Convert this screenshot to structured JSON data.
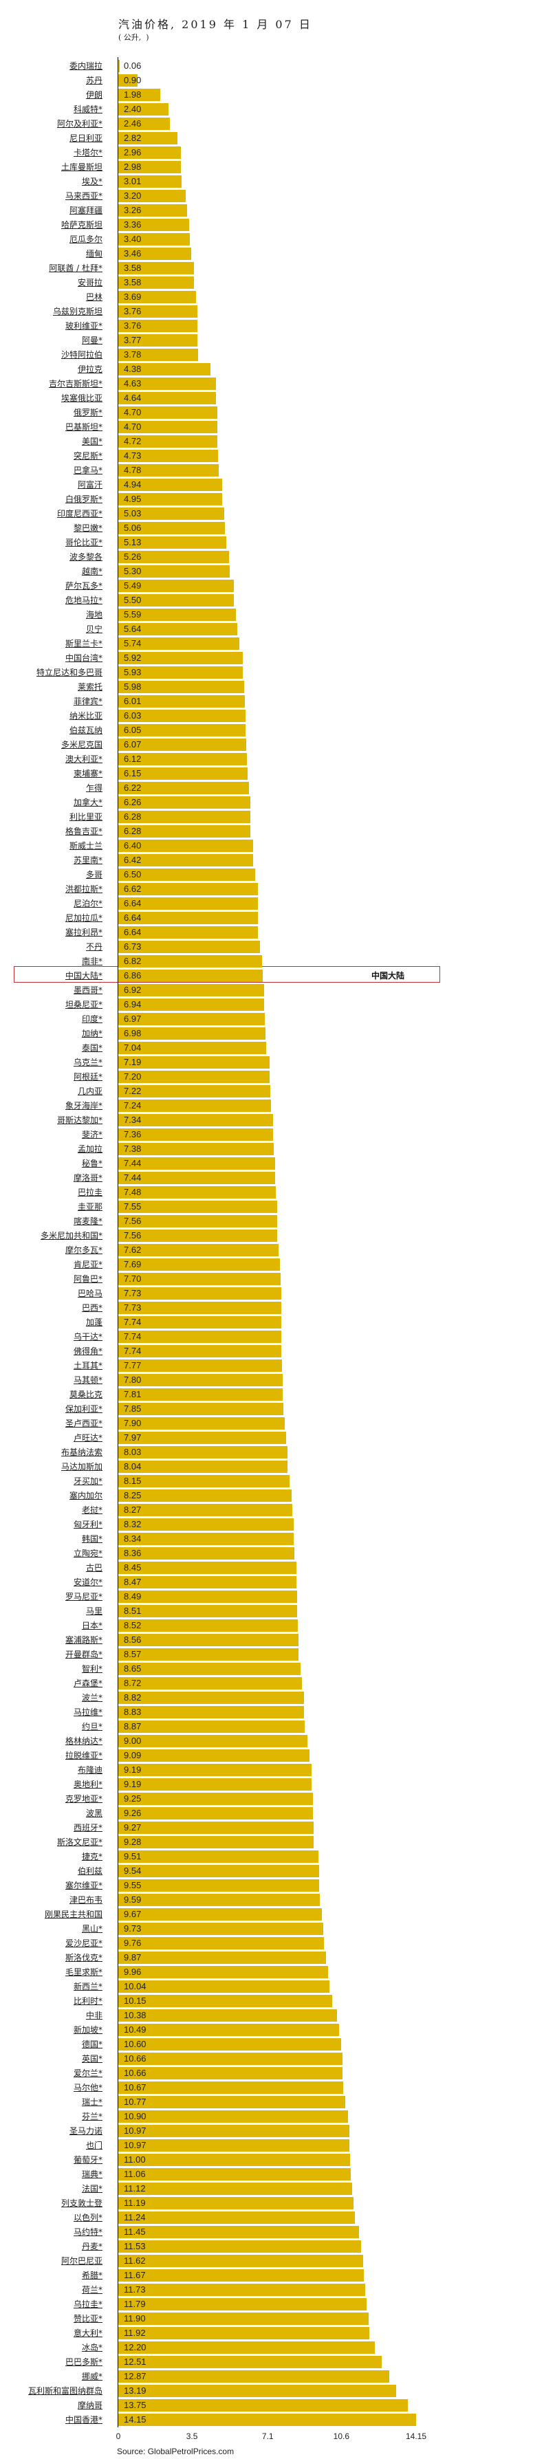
{
  "chart_data": {
    "type": "bar",
    "orientation": "horizontal",
    "title": "汽油价格, 2019 年 1 月 07 日",
    "subtitle": "( 公升,  )",
    "source": "Source: GlobalPetrolPrices.com",
    "highlight_label": "中国大陆",
    "highlight_category": "中国大陆*",
    "bar_color": "#E0B700",
    "xlim": [
      0,
      14.15
    ],
    "xticks": [
      "0",
      "3.5",
      "7.1",
      "10.6",
      "14.15"
    ],
    "xtick_values": [
      0,
      3.5,
      7.1,
      10.6,
      14.15
    ],
    "categories": [
      "委内瑞拉",
      "苏丹",
      "伊朗",
      "科威特*",
      "阿尔及利亚*",
      "尼日利亚",
      "卡塔尔*",
      "土库曼斯坦",
      "埃及*",
      "马来西亚*",
      "阿塞拜疆",
      "哈萨克斯坦",
      "厄瓜多尔",
      "缅甸",
      "阿联酋 / 杜拜*",
      "安哥拉",
      "巴林",
      "乌兹别克斯坦",
      "玻利维亚*",
      "阿曼*",
      "沙特阿拉伯",
      "伊拉克",
      "吉尔吉斯斯坦*",
      "埃塞俄比亚",
      "俄罗斯*",
      "巴基斯坦*",
      "美国*",
      "突尼斯*",
      "巴拿马*",
      "阿富汗",
      "白俄罗斯*",
      "印度尼西亚*",
      "黎巴嫩*",
      "哥伦比亚*",
      "波多黎各",
      "越南*",
      "萨尔瓦多*",
      "危地马拉*",
      "海地",
      "贝宁",
      "斯里兰卡*",
      "中国台湾*",
      "特立尼达和多巴哥",
      "莱索托",
      "菲律宾*",
      "纳米比亚",
      "伯兹瓦纳",
      "多米尼克国",
      "澳大利亚*",
      "柬埔寨*",
      "乍得",
      "加拿大*",
      "利比里亚",
      "格鲁吉亚*",
      "斯威士兰",
      "苏里南*",
      "多哥",
      "洪都拉斯*",
      "尼泊尔*",
      "尼加拉瓜*",
      "塞拉利昂*",
      "不丹",
      "南非*",
      "中国大陆*",
      "墨西哥*",
      "坦桑尼亚*",
      "印度*",
      "加纳*",
      "泰国*",
      "乌克兰*",
      "阿根廷*",
      "几内亚",
      "象牙海岸*",
      "哥斯达黎加*",
      "斐济*",
      "孟加拉",
      "秘鲁*",
      "摩洛哥*",
      "巴拉圭",
      "圭亚那",
      "喀麦隆*",
      "多米尼加共和国*",
      "摩尔多瓦*",
      "肯尼亚*",
      "阿鲁巴*",
      "巴哈马",
      "巴西*",
      "加蓬",
      "乌干达*",
      "佛得角*",
      "土耳其*",
      "马其顿*",
      "莫桑比克",
      "保加利亚*",
      "圣卢西亚*",
      "卢旺达*",
      "布基纳法索",
      "马达加斯加",
      "牙买加*",
      "塞内加尔",
      "老挝*",
      "匈牙利*",
      "韩国*",
      "立陶宛*",
      "古巴",
      "安道尔*",
      "罗马尼亚*",
      "马里",
      "日本*",
      "塞浦路斯*",
      "开曼群岛*",
      "智利*",
      "卢森堡*",
      "波兰*",
      "马拉维*",
      "约旦*",
      "格林纳达*",
      "拉脱维亚*",
      "布隆迪",
      "奥地利*",
      "克罗地亚*",
      "波黑",
      "西班牙*",
      "斯洛文尼亚*",
      "捷克*",
      "伯利兹",
      "塞尔维亚*",
      "津巴布韦",
      "刚果民主共和国",
      "黑山*",
      "爱沙尼亚*",
      "斯洛伐克*",
      "毛里求斯*",
      "新西兰*",
      "比利时*",
      "中非",
      "新加坡*",
      "德国*",
      "英国*",
      "爱尔兰*",
      "马尔他*",
      "瑞士*",
      "芬兰*",
      "圣马力诺",
      "也门",
      "葡萄牙*",
      "瑞典*",
      "法国*",
      "列支敦士登",
      "以色列*",
      "马约特*",
      "丹麦*",
      "阿尔巴尼亚",
      "希腊*",
      "荷兰*",
      "乌拉圭*",
      "赞比亚*",
      "意大利*",
      "冰岛*",
      "巴巴多斯*",
      "挪威*",
      "瓦利斯和富图纳群岛",
      "摩纳哥",
      "中国香港*"
    ],
    "values": [
      "0.06",
      "0.90",
      "1.98",
      "2.40",
      "2.46",
      "2.82",
      "2.96",
      "2.98",
      "3.01",
      "3.20",
      "3.26",
      "3.36",
      "3.40",
      "3.46",
      "3.58",
      "3.58",
      "3.69",
      "3.76",
      "3.76",
      "3.77",
      "3.78",
      "4.38",
      "4.63",
      "4.64",
      "4.70",
      "4.70",
      "4.72",
      "4.73",
      "4.78",
      "4.94",
      "4.95",
      "5.03",
      "5.06",
      "5.13",
      "5.26",
      "5.30",
      "5.49",
      "5.50",
      "5.59",
      "5.64",
      "5.74",
      "5.92",
      "5.93",
      "5.98",
      "6.01",
      "6.03",
      "6.05",
      "6.07",
      "6.12",
      "6.15",
      "6.22",
      "6.26",
      "6.28",
      "6.28",
      "6.40",
      "6.42",
      "6.50",
      "6.62",
      "6.64",
      "6.64",
      "6.64",
      "6.73",
      "6.82",
      "6.86",
      "6.92",
      "6.94",
      "6.97",
      "6.98",
      "7.04",
      "7.19",
      "7.20",
      "7.22",
      "7.24",
      "7.34",
      "7.36",
      "7.38",
      "7.44",
      "7.44",
      "7.48",
      "7.55",
      "7.56",
      "7.56",
      "7.62",
      "7.69",
      "7.70",
      "7.73",
      "7.73",
      "7.74",
      "7.74",
      "7.74",
      "7.77",
      "7.80",
      "7.81",
      "7.85",
      "7.90",
      "7.97",
      "8.03",
      "8.04",
      "8.15",
      "8.25",
      "8.27",
      "8.32",
      "8.34",
      "8.36",
      "8.45",
      "8.47",
      "8.49",
      "8.51",
      "8.52",
      "8.56",
      "8.57",
      "8.65",
      "8.72",
      "8.82",
      "8.83",
      "8.87",
      "9.00",
      "9.09",
      "9.19",
      "9.19",
      "9.25",
      "9.26",
      "9.27",
      "9.28",
      "9.51",
      "9.54",
      "9.55",
      "9.59",
      "9.67",
      "9.73",
      "9.76",
      "9.87",
      "9.96",
      "10.04",
      "10.15",
      "10.38",
      "10.49",
      "10.60",
      "10.66",
      "10.66",
      "10.67",
      "10.77",
      "10.90",
      "10.97",
      "10.97",
      "11.00",
      "11.06",
      "11.12",
      "11.19",
      "11.24",
      "11.45",
      "11.53",
      "11.62",
      "11.67",
      "11.73",
      "11.79",
      "11.90",
      "11.92",
      "12.20",
      "12.51",
      "12.87",
      "13.19",
      "13.75",
      "14.15"
    ]
  }
}
